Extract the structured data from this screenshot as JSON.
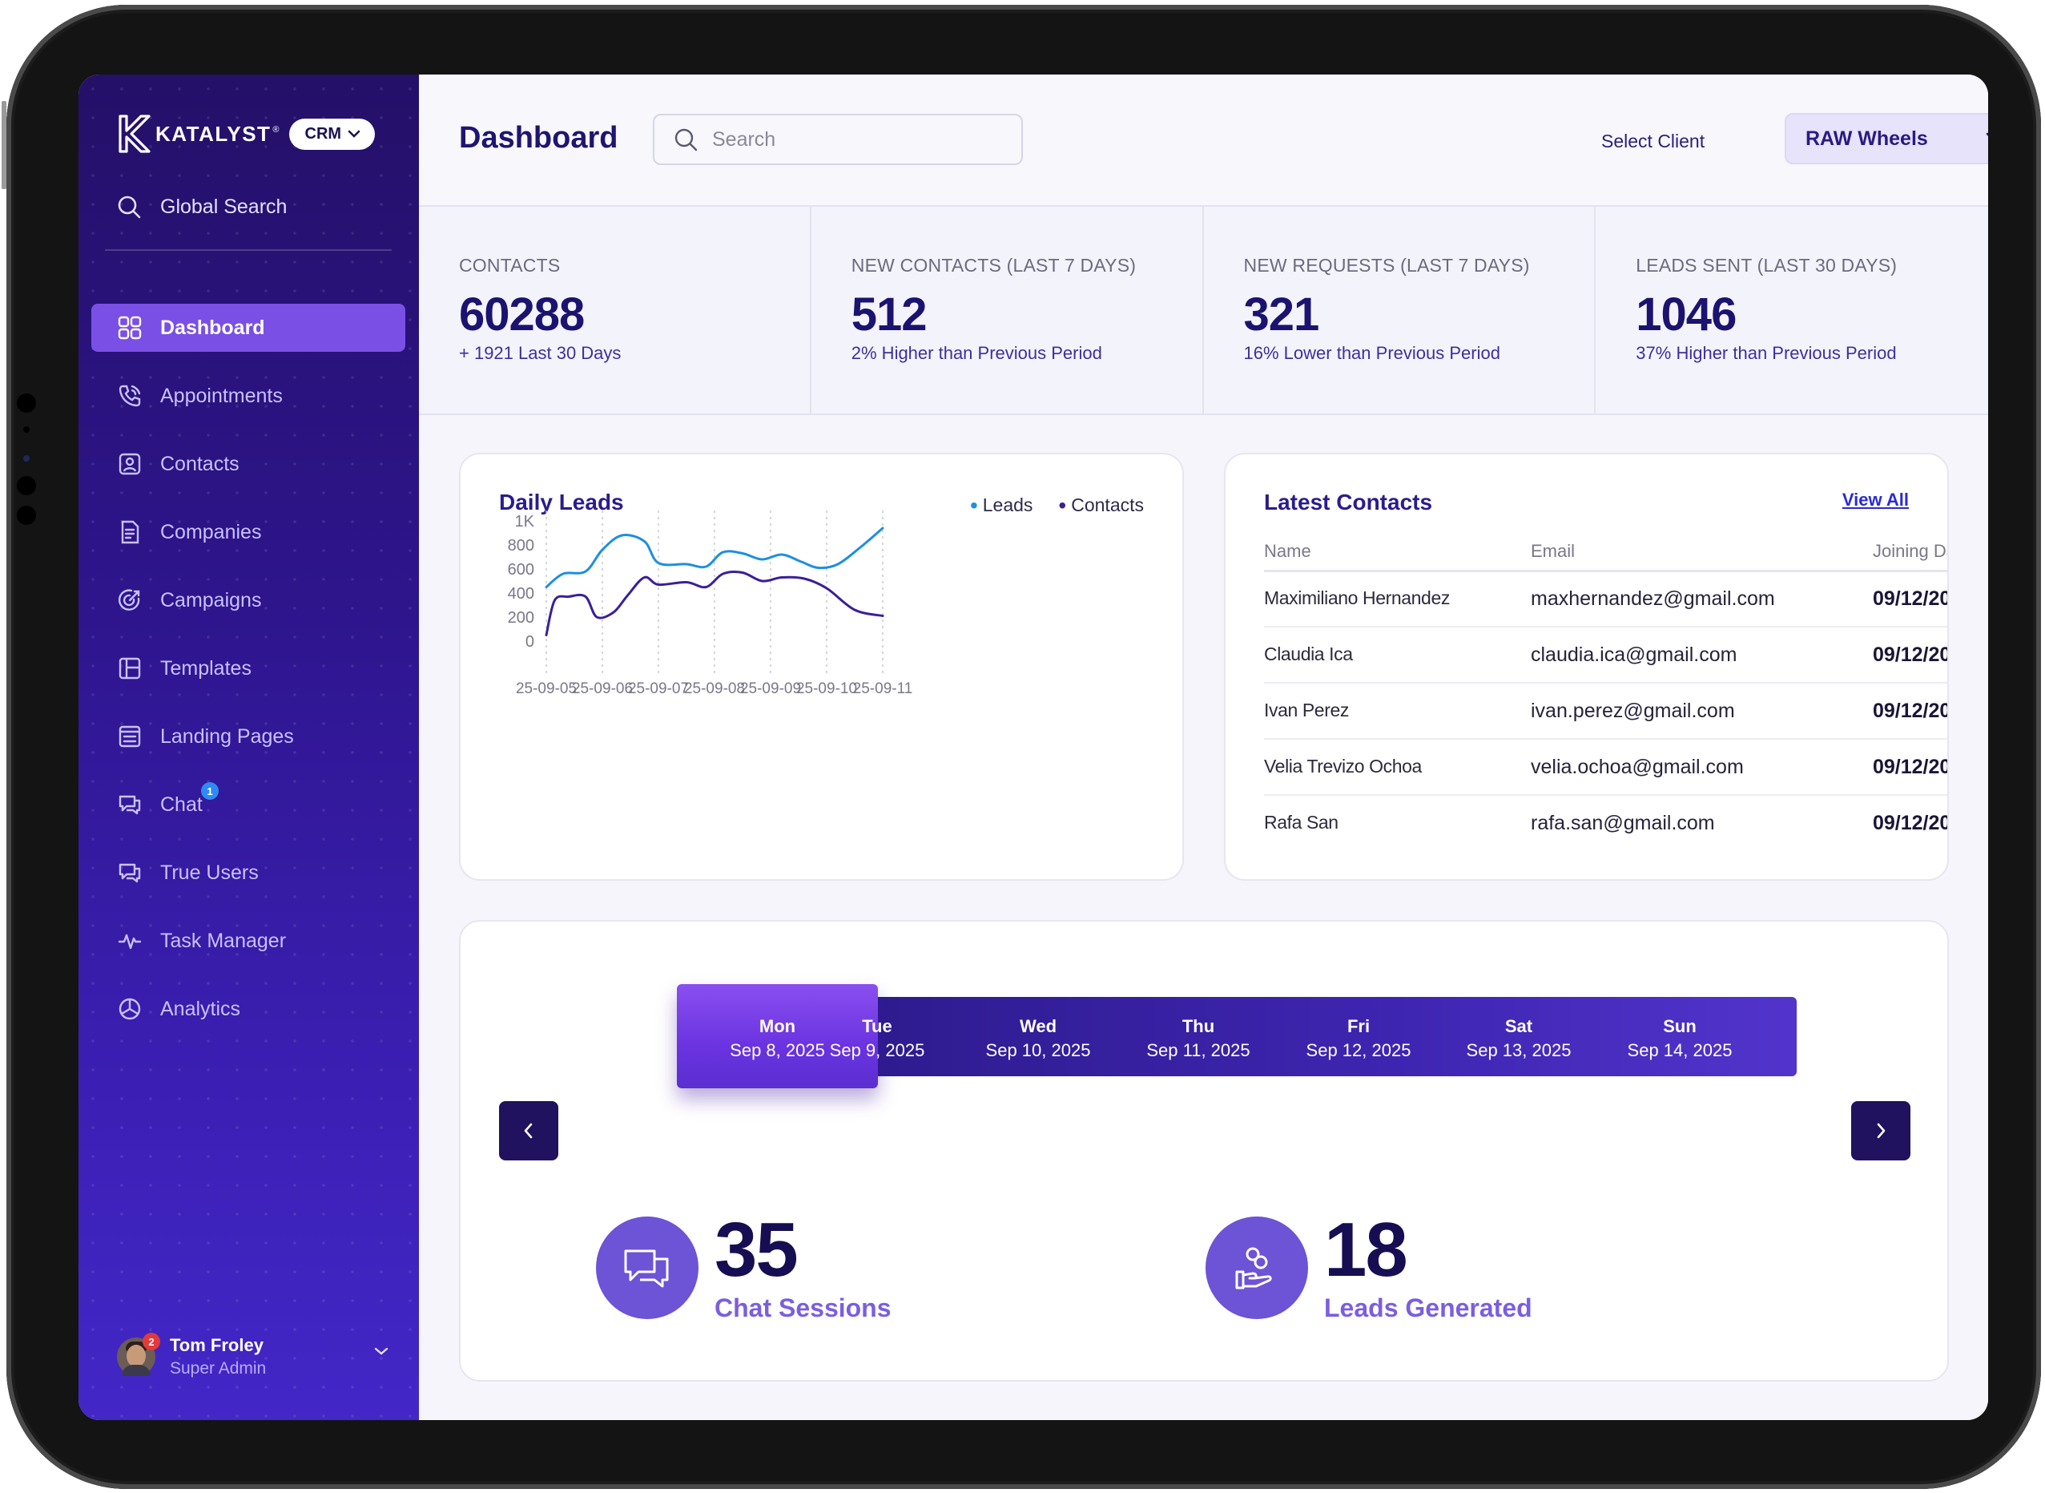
{
  "sidebar": {
    "brand": "KATALYST",
    "brand_mark": "®",
    "crm_label": "CRM",
    "global_search": "Global Search",
    "items": [
      {
        "label": "Dashboard",
        "icon": "grid-icon",
        "active": true
      },
      {
        "label": "Appointments",
        "icon": "phone-icon"
      },
      {
        "label": "Contacts",
        "icon": "contact-card-icon"
      },
      {
        "label": "Companies",
        "icon": "document-icon"
      },
      {
        "label": "Campaigns",
        "icon": "target-icon"
      },
      {
        "label": "Templates",
        "icon": "layout-icon"
      },
      {
        "label": "Landing Pages",
        "icon": "page-icon"
      },
      {
        "label": "Chat",
        "icon": "chat-icon",
        "badge": "1"
      },
      {
        "label": "True Users",
        "icon": "chat-bubbles-icon"
      },
      {
        "label": "Task Manager",
        "icon": "pulse-icon"
      },
      {
        "label": "Analytics",
        "icon": "pie-chart-icon"
      }
    ],
    "user": {
      "name": "Tom Froley",
      "role": "Super Admin",
      "badge": "2"
    }
  },
  "header": {
    "title": "Dashboard",
    "search_placeholder": "Search",
    "select_label": "Select Client",
    "selected_client": "RAW Wheels"
  },
  "stats": [
    {
      "label": "CONTACTS",
      "value": "60288",
      "sub": "+ 1921 Last 30 Days"
    },
    {
      "label": "NEW CONTACTS (LAST 7 DAYS)",
      "value": "512",
      "sub": "2% Higher than Previous Period"
    },
    {
      "label": "NEW REQUESTS (LAST 7 DAYS)",
      "value": "321",
      "sub": "16% Lower than Previous Period"
    },
    {
      "label": "LEADS SENT (LAST 30 DAYS)",
      "value": "1046",
      "sub": "37% Higher than Previous Period"
    }
  ],
  "daily_leads": {
    "title": "Daily Leads",
    "legend": [
      "Leads",
      "Contacts"
    ],
    "colors": {
      "Leads": "#1e8fe0",
      "Contacts": "#3a1f9a"
    }
  },
  "chart_data": {
    "type": "line",
    "title": "Daily Leads",
    "x": [
      "25-09-05",
      "25-09-06",
      "25-09-07",
      "25-09-08",
      "25-09-09",
      "25-09-10",
      "25-09-11"
    ],
    "yticks": [
      "0",
      "200",
      "400",
      "600",
      "800",
      "1K"
    ],
    "ylim": [
      0,
      1000
    ],
    "grid": "vertical dashed",
    "legend_position": "top-right",
    "series": [
      {
        "name": "Leads",
        "x": [
          0,
          0.3,
          0.7,
          1,
          1.35,
          1.75,
          2,
          2.5,
          2.85,
          3.15,
          3.5,
          3.85,
          4.2,
          4.55,
          4.85,
          5.2,
          5.6,
          6
        ],
        "values": [
          450,
          560,
          580,
          760,
          880,
          830,
          650,
          640,
          620,
          740,
          730,
          680,
          720,
          660,
          610,
          640,
          780,
          940
        ]
      },
      {
        "name": "Contacts",
        "x": [
          0,
          0.15,
          0.4,
          0.7,
          0.9,
          1.2,
          1.45,
          1.75,
          2,
          2.5,
          2.85,
          3.15,
          3.5,
          3.85,
          4.2,
          4.6,
          5.0,
          5.5,
          6
        ],
        "values": [
          50,
          340,
          370,
          370,
          200,
          240,
          380,
          530,
          470,
          490,
          450,
          560,
          570,
          500,
          530,
          520,
          440,
          260,
          210
        ]
      }
    ]
  },
  "latest_contacts": {
    "title": "Latest Contacts",
    "view_all": "View All",
    "columns": [
      "Name",
      "Email",
      "Joining Da"
    ],
    "rows": [
      {
        "name": "Maximiliano Hernandez",
        "email": "maxhernandez@gmail.com",
        "date": "09/12/20"
      },
      {
        "name": "Claudia Ica",
        "email": "claudia.ica@gmail.com",
        "date": "09/12/20"
      },
      {
        "name": "Ivan Perez",
        "email": "ivan.perez@gmail.com",
        "date": "09/12/20"
      },
      {
        "name": "Velia Trevizo Ochoa",
        "email": "velia.ochoa@gmail.com",
        "date": "09/12/20"
      },
      {
        "name": "Rafa San",
        "email": "rafa.san@gmail.com",
        "date": "09/12/20"
      }
    ]
  },
  "week": {
    "days": [
      {
        "name": "Mon",
        "date": "Sep 8, 2025",
        "active": true
      },
      {
        "name": "Tue",
        "date": "Sep 9, 2025"
      },
      {
        "name": "Wed",
        "date": "Sep 10, 2025"
      },
      {
        "name": "Thu",
        "date": "Sep 11, 2025"
      },
      {
        "name": "Fri",
        "date": "Sep 12, 2025"
      },
      {
        "name": "Sat",
        "date": "Sep 13, 2025"
      },
      {
        "name": "Sun",
        "date": "Sep 14, 2025"
      }
    ]
  },
  "kpis": [
    {
      "value": "35",
      "label": "Chat Sessions",
      "icon": "chat-bubbles-icon"
    },
    {
      "value": "18",
      "label": "Leads Generated",
      "icon": "hand-coins-icon"
    }
  ]
}
